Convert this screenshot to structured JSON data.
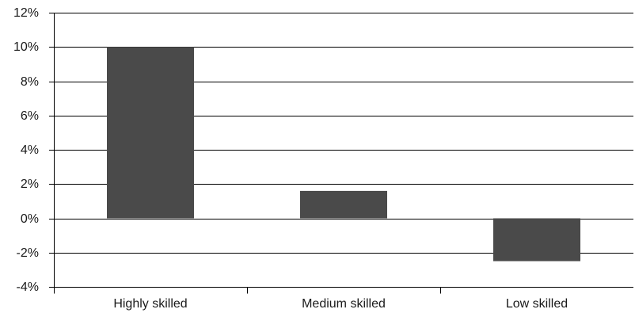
{
  "chart_data": {
    "type": "bar",
    "categories": [
      "Highly skilled",
      "Medium skilled",
      "Low skilled"
    ],
    "values": [
      10.0,
      1.6,
      -2.5
    ],
    "title": "",
    "xlabel": "",
    "ylabel": "",
    "ylim": [
      -4,
      12
    ],
    "yticks": [
      "-4%",
      "-2%",
      "0%",
      "2%",
      "4%",
      "6%",
      "8%",
      "10%",
      "12%"
    ],
    "ytick_values": [
      -4,
      -2,
      0,
      2,
      4,
      6,
      8,
      10,
      12
    ],
    "grid": true,
    "bar_color": "#4a4a4a"
  }
}
